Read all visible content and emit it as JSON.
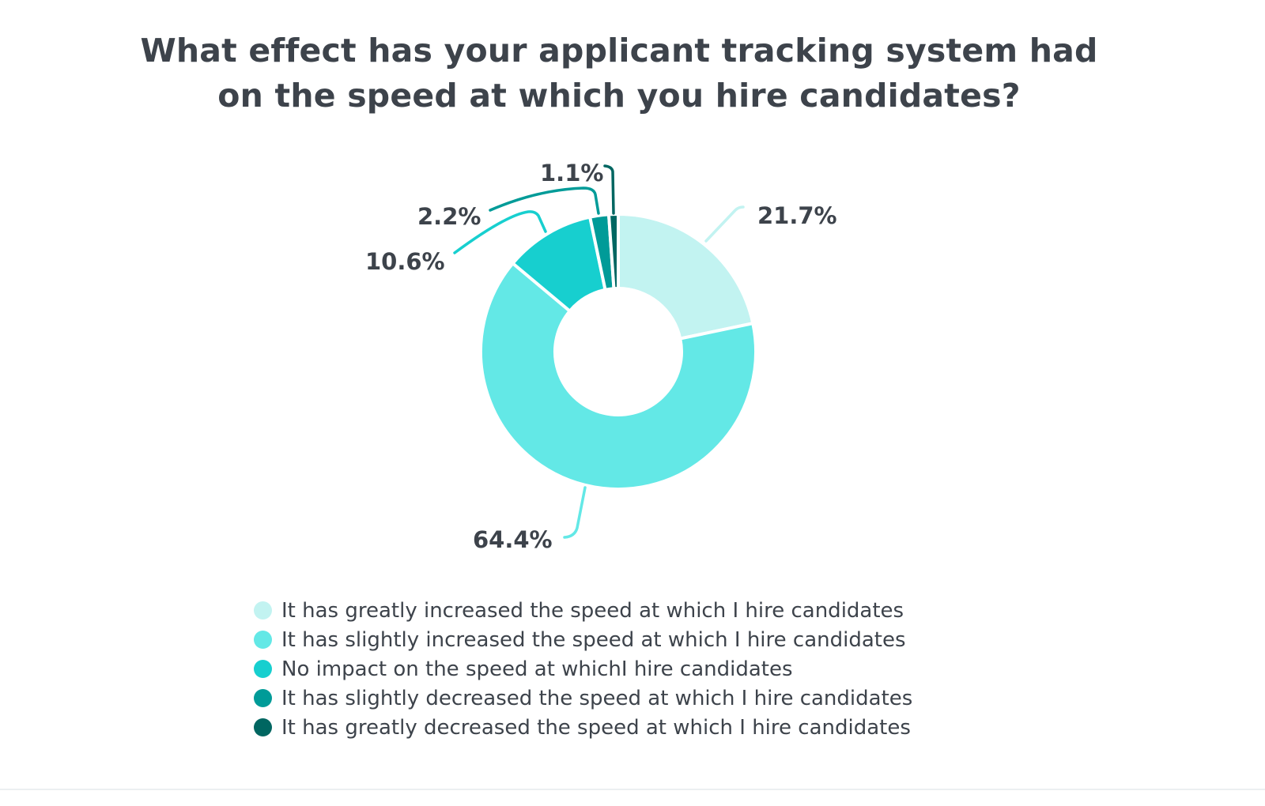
{
  "chart_data": {
    "type": "pie",
    "donut": true,
    "title_lines": [
      "What effect has your applicant tracking system had",
      "on the speed at which you hire candidates?"
    ],
    "categories": [
      "It has greatly increased the speed at which I hire candidates",
      "It has slightly increased the speed at which I hire candidates",
      "No impact on the speed at whichI hire candidates",
      "It has slightly decreased the speed at which I hire candidates",
      "It has greatly decreased the speed at which I hire candidates"
    ],
    "values": [
      21.7,
      64.4,
      10.6,
      2.2,
      1.1
    ],
    "data_labels": [
      "21.7%",
      "64.4%",
      "10.6%",
      "2.2%",
      "1.1%"
    ],
    "colors": [
      "#c2f3f1",
      "#63e8e6",
      "#17cfcf",
      "#009b98",
      "#006661"
    ],
    "legend_position": "bottom"
  }
}
